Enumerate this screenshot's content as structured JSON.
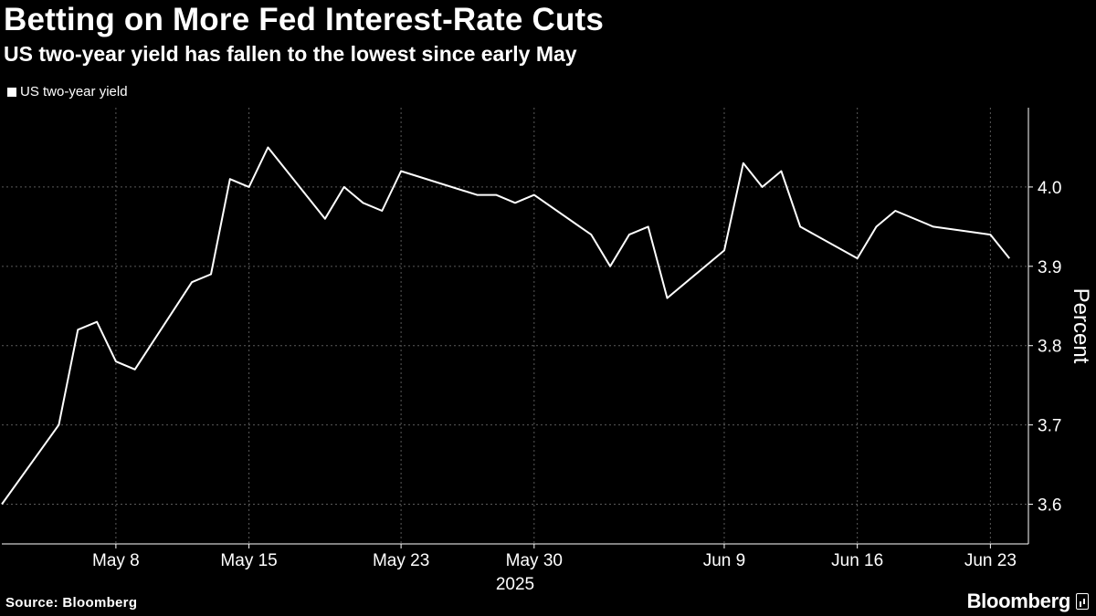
{
  "chart_data": {
    "type": "line",
    "title": "Betting on More Fed Interest-Rate Cuts",
    "subtitle": "US two-year yield has fallen to the lowest since early May",
    "ylabel": "Percent",
    "xlabel": "2025",
    "ylim": [
      3.55,
      4.1
    ],
    "yticks": [
      3.6,
      3.7,
      3.8,
      3.9,
      4.0
    ],
    "ytick_labels": [
      "3.6",
      "3.7",
      "3.8",
      "3.9",
      "4.0"
    ],
    "xrange": [
      "2025-05-02",
      "2025-06-25"
    ],
    "xticks": [
      {
        "date": "2025-05-08",
        "label": "May 8"
      },
      {
        "date": "2025-05-15",
        "label": "May 15"
      },
      {
        "date": "2025-05-23",
        "label": "May 23"
      },
      {
        "date": "2025-05-30",
        "label": "May 30"
      },
      {
        "date": "2025-06-09",
        "label": "Jun 9"
      },
      {
        "date": "2025-06-16",
        "label": "Jun 16"
      },
      {
        "date": "2025-06-23",
        "label": "Jun 23"
      }
    ],
    "grid": true,
    "legend_position": "top-left",
    "series": [
      {
        "name": "US two-year yield",
        "color": "#ffffff",
        "x": [
          "2025-05-02",
          "2025-05-05",
          "2025-05-06",
          "2025-05-07",
          "2025-05-08",
          "2025-05-09",
          "2025-05-12",
          "2025-05-13",
          "2025-05-14",
          "2025-05-15",
          "2025-05-16",
          "2025-05-19",
          "2025-05-20",
          "2025-05-21",
          "2025-05-22",
          "2025-05-23",
          "2025-05-27",
          "2025-05-28",
          "2025-05-29",
          "2025-05-30",
          "2025-06-02",
          "2025-06-03",
          "2025-06-04",
          "2025-06-05",
          "2025-06-06",
          "2025-06-09",
          "2025-06-10",
          "2025-06-11",
          "2025-06-12",
          "2025-06-13",
          "2025-06-16",
          "2025-06-17",
          "2025-06-18",
          "2025-06-20",
          "2025-06-23",
          "2025-06-24"
        ],
        "values": [
          3.6,
          3.7,
          3.82,
          3.83,
          3.78,
          3.77,
          3.88,
          3.89,
          4.01,
          4.0,
          4.05,
          3.96,
          4.0,
          3.98,
          3.97,
          4.02,
          3.99,
          3.99,
          3.98,
          3.99,
          3.94,
          3.9,
          3.94,
          3.95,
          3.86,
          3.92,
          4.03,
          4.0,
          4.02,
          3.95,
          3.91,
          3.95,
          3.97,
          3.95,
          3.94,
          3.91
        ]
      }
    ]
  },
  "footer": {
    "source": "Source: Bloomberg",
    "brand": "Bloomberg"
  },
  "colors": {
    "background": "#000000",
    "line": "#ffffff",
    "grid": "#5a5a5a"
  }
}
